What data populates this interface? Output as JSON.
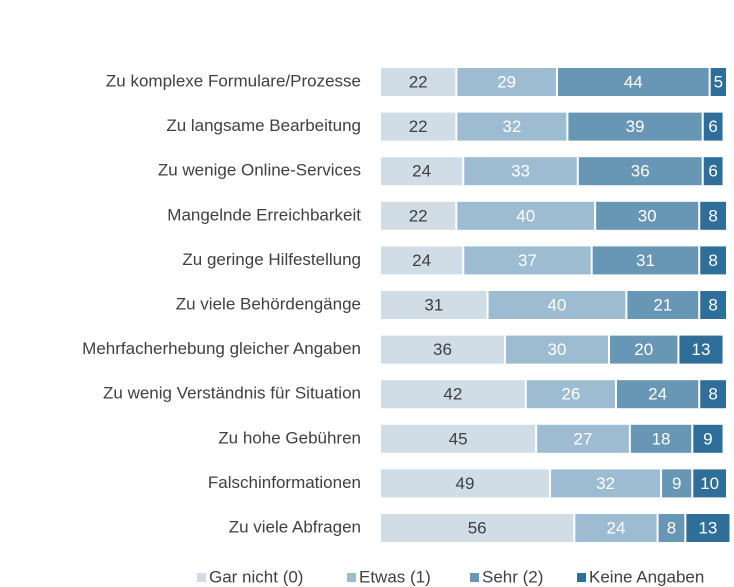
{
  "chart_data": {
    "type": "stacked_bar_horizontal",
    "categories": [
      "Zu komplexe Formulare/Prozesse",
      "Zu langsame Bearbeitung",
      "Zu wenige Online-Services",
      "Mangelnde Erreichbarkeit",
      "Zu geringe Hilfestellung",
      "Zu viele Behördengänge",
      "Mehrfacherhebung gleicher Angaben",
      "Zu wenig Verständnis für Situation",
      "Zu hohe Gebühren",
      "Falschinformationen",
      "Zu viele Abfragen"
    ],
    "series": [
      {
        "name": "Gar nicht (0)",
        "color": "#d0dde7",
        "values": [
          22,
          22,
          24,
          22,
          24,
          31,
          36,
          42,
          45,
          49,
          56
        ]
      },
      {
        "name": "Etwas (1)",
        "color": "#9dbcd1",
        "values": [
          29,
          32,
          33,
          40,
          37,
          40,
          30,
          26,
          27,
          32,
          24
        ]
      },
      {
        "name": "Sehr (2)",
        "color": "#6896b5",
        "values": [
          44,
          39,
          36,
          30,
          31,
          21,
          20,
          24,
          18,
          9,
          8
        ]
      },
      {
        "name": "Keine Angaben",
        "color": "#2f6e99",
        "values": [
          5,
          6,
          6,
          8,
          8,
          8,
          13,
          8,
          9,
          10,
          13
        ]
      }
    ],
    "legend": "bottom-right"
  }
}
